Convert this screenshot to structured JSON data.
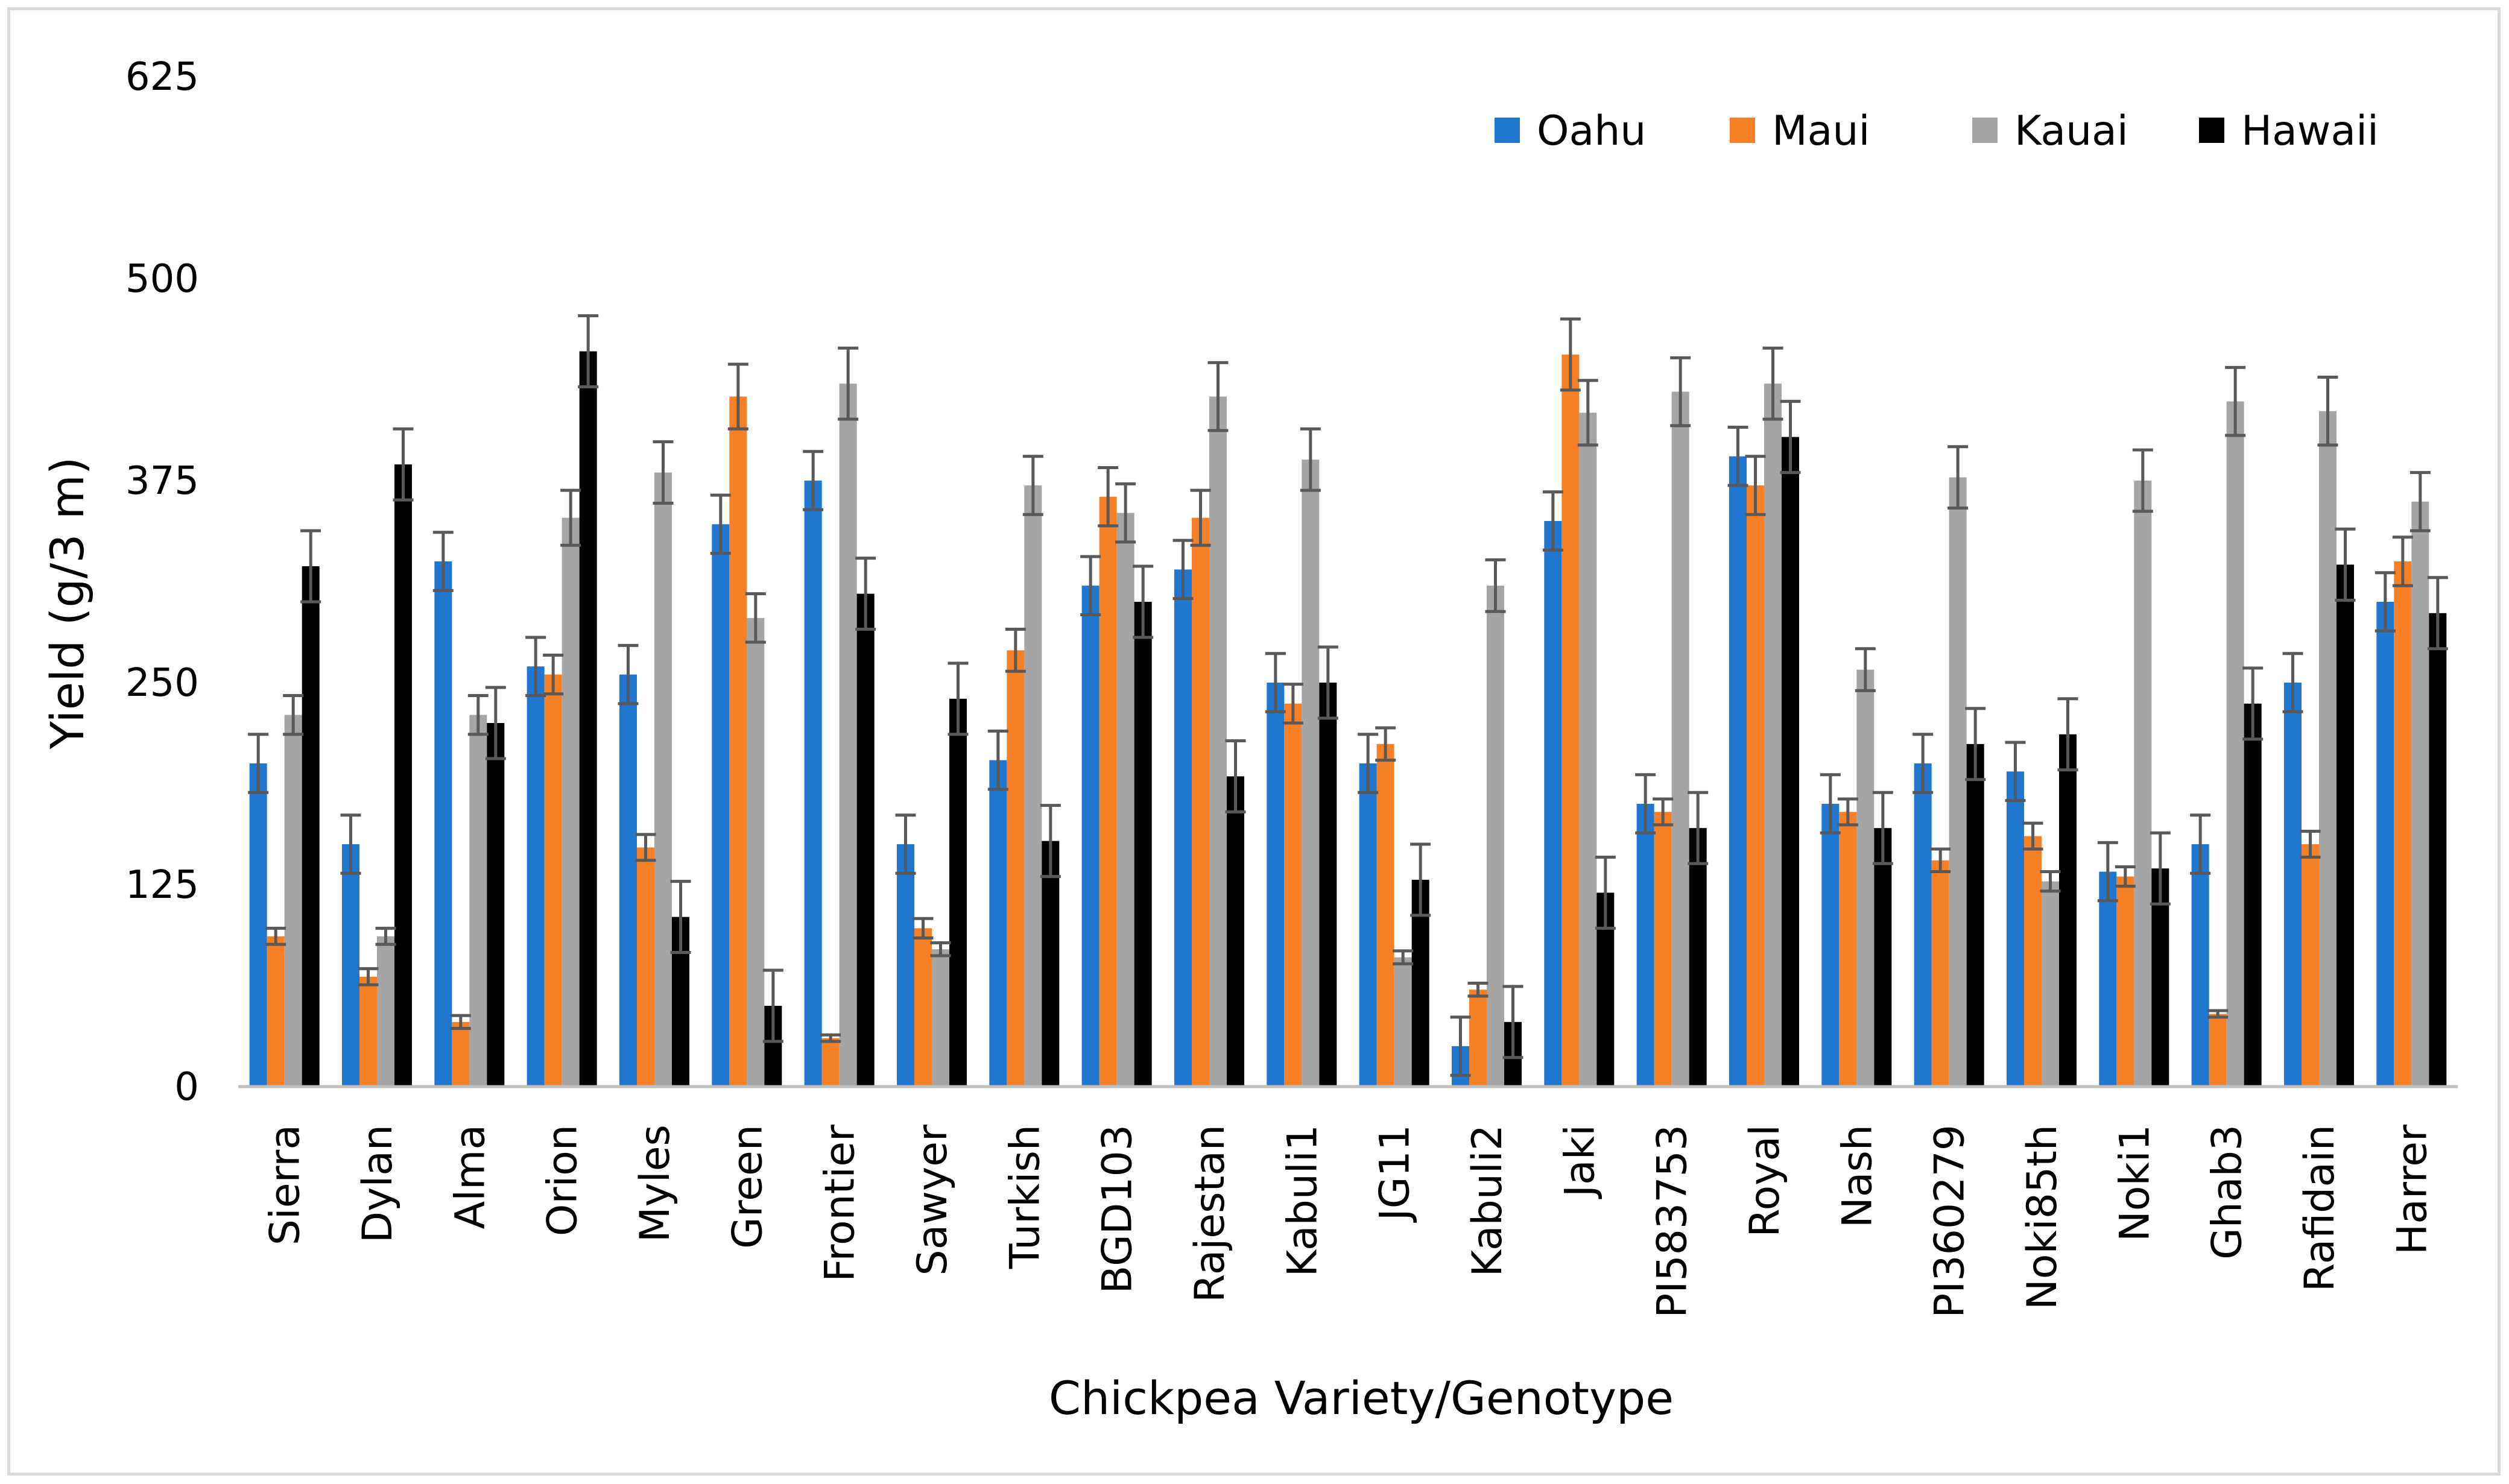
{
  "chart_data": {
    "type": "bar",
    "title": "",
    "xlabel": "Chickpea Variety/Genotype",
    "ylabel": "Yield (g/3 m)",
    "ylim": [
      0,
      625
    ],
    "yticks": [
      0,
      125,
      250,
      375,
      500,
      625
    ],
    "grid": false,
    "legend_position": "top-right",
    "categories": [
      "Sierra",
      "Dylan",
      "Alma",
      "Orion",
      "Myles",
      "Green",
      "Frontier",
      "Sawyer",
      "Turkish",
      "BGD103",
      "Rajestan",
      "Kabuli1",
      "JG11",
      "Kabuli2",
      "Jaki",
      "PI583753",
      "Royal",
      "Nash",
      "PI360279",
      "Noki85th",
      "Noki1",
      "Ghab3",
      "Rafidain",
      "Harrer"
    ],
    "series": [
      {
        "name": "Oahu",
        "color": "#1f77d0",
        "values": [
          200,
          150,
          325,
          260,
          255,
          348,
          375,
          150,
          202,
          310,
          320,
          250,
          200,
          25,
          350,
          175,
          390,
          175,
          200,
          195,
          133,
          150,
          250,
          300
        ],
        "errors": [
          18,
          18,
          18,
          18,
          18,
          18,
          18,
          18,
          18,
          18,
          18,
          18,
          18,
          18,
          18,
          18,
          18,
          18,
          18,
          18,
          18,
          18,
          18,
          18
        ]
      },
      {
        "name": "Maui",
        "color": "#f58025",
        "values": [
          93,
          68,
          40,
          255,
          148,
          427,
          30,
          98,
          270,
          365,
          352,
          237,
          212,
          60,
          453,
          170,
          372,
          170,
          140,
          155,
          130,
          45,
          150,
          325
        ],
        "errors": [
          5,
          5,
          4,
          12,
          8,
          20,
          2,
          6,
          13,
          18,
          17,
          12,
          10,
          4,
          22,
          8,
          18,
          8,
          7,
          8,
          6,
          2,
          8,
          15
        ]
      },
      {
        "name": "Kauai",
        "color": "#a5a5a5",
        "values": [
          230,
          93,
          230,
          352,
          380,
          290,
          435,
          85,
          372,
          355,
          427,
          388,
          80,
          310,
          417,
          430,
          435,
          258,
          377,
          127,
          375,
          424,
          418,
          362
        ],
        "errors": [
          12,
          5,
          12,
          17,
          19,
          15,
          22,
          4,
          18,
          18,
          21,
          19,
          4,
          16,
          20,
          21,
          22,
          13,
          19,
          6,
          19,
          21,
          21,
          18
        ]
      },
      {
        "name": "Hawaii",
        "color": "#000000",
        "values": [
          322,
          385,
          225,
          455,
          105,
          50,
          305,
          240,
          152,
          300,
          192,
          250,
          128,
          40,
          120,
          160,
          402,
          160,
          212,
          218,
          135,
          237,
          323,
          293
        ],
        "errors": [
          22,
          22,
          22,
          22,
          22,
          22,
          22,
          22,
          22,
          22,
          22,
          22,
          22,
          22,
          22,
          22,
          22,
          22,
          22,
          22,
          22,
          22,
          22,
          22
        ]
      }
    ]
  }
}
